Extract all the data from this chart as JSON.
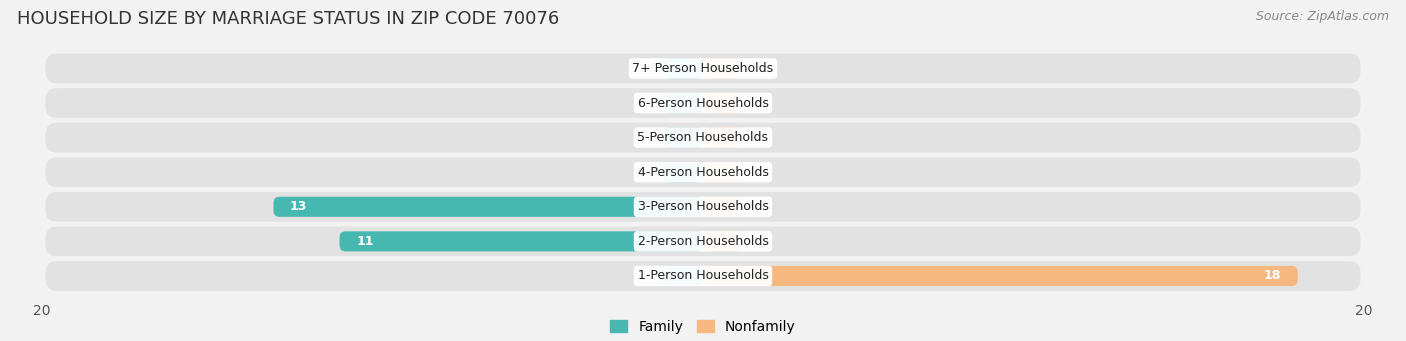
{
  "title": "HOUSEHOLD SIZE BY MARRIAGE STATUS IN ZIP CODE 70076",
  "source": "Source: ZipAtlas.com",
  "categories": [
    "7+ Person Households",
    "6-Person Households",
    "5-Person Households",
    "4-Person Households",
    "3-Person Households",
    "2-Person Households",
    "1-Person Households"
  ],
  "family": [
    0,
    0,
    0,
    0,
    13,
    11,
    0
  ],
  "nonfamily": [
    0,
    0,
    0,
    0,
    0,
    0,
    18
  ],
  "family_color": "#46b8b0",
  "nonfamily_color": "#f5b97f",
  "xlim": [
    -20,
    20
  ],
  "zero_stub": 1.2,
  "background_color": "#f2f2f2",
  "row_bg_color": "#e2e2e2",
  "title_fontsize": 13,
  "source_fontsize": 9,
  "tick_fontsize": 10,
  "label_fontsize": 9,
  "value_fontsize": 9,
  "bar_height": 0.58,
  "row_rounding": 0.35
}
